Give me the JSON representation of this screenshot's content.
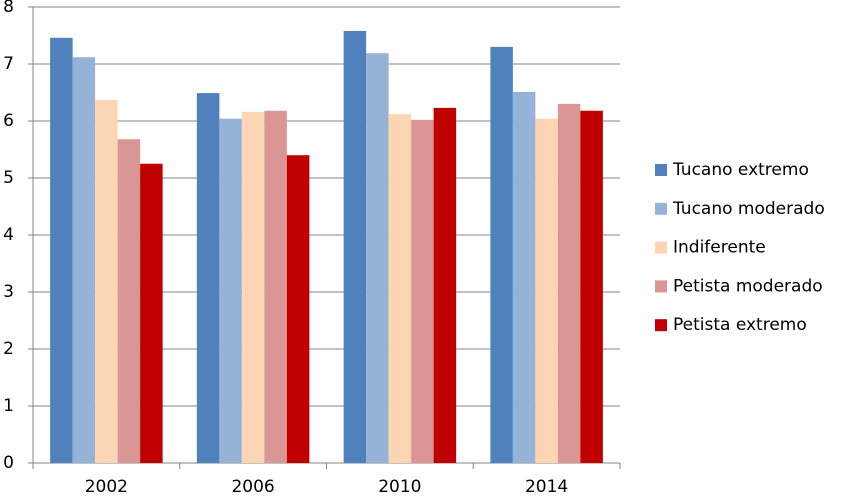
{
  "chart_data": {
    "type": "bar",
    "categories": [
      "2002",
      "2006",
      "2010",
      "2014"
    ],
    "series": [
      {
        "name": "Tucano extremo",
        "color": "#4f81bd",
        "values": [
          7.46,
          6.49,
          7.58,
          7.3
        ]
      },
      {
        "name": "Tucano moderado",
        "color": "#95b3d7",
        "values": [
          7.12,
          6.04,
          7.19,
          6.51
        ]
      },
      {
        "name": "Indiferente",
        "color": "#fcd5b5",
        "values": [
          6.37,
          6.16,
          6.12,
          6.04
        ]
      },
      {
        "name": "Petista moderado",
        "color": "#d99694",
        "values": [
          5.68,
          6.18,
          6.02,
          6.3
        ]
      },
      {
        "name": "Petista extremo",
        "color": "#c00000",
        "values": [
          5.25,
          5.4,
          6.23,
          6.18
        ]
      }
    ],
    "ylim": [
      0,
      8
    ],
    "yticks": [
      0,
      1,
      2,
      3,
      4,
      5,
      6,
      7,
      8
    ],
    "grid": true,
    "legend": "right"
  }
}
